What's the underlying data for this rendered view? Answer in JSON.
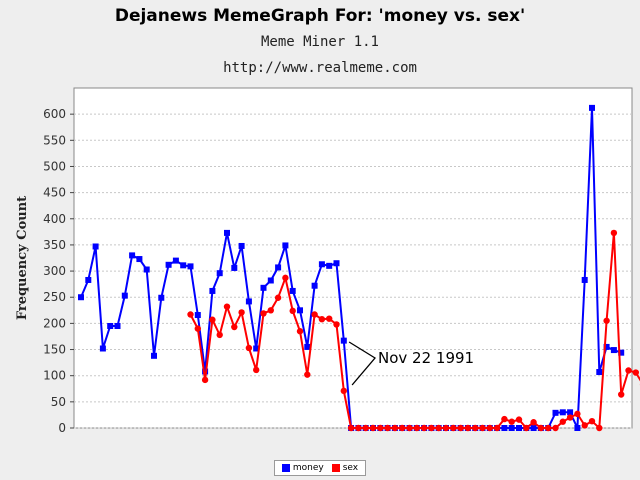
{
  "header": {
    "title": "Dejanews MemeGraph For: 'money vs. sex'",
    "subtitle": "Meme Miner 1.1",
    "url": "http://www.realmeme.com"
  },
  "chart_data": {
    "type": "line",
    "title": "Dejanews MemeGraph For: 'money vs. sex'",
    "xlabel": "",
    "ylabel": "Frequency Count",
    "ylim": [
      0,
      650
    ],
    "yticks": [
      0,
      50,
      100,
      150,
      200,
      250,
      300,
      350,
      400,
      450,
      500,
      550,
      600
    ],
    "grid": true,
    "legend_position": "bottom-center",
    "series": [
      {
        "name": "money",
        "color": "#0000ff",
        "values": [
          250,
          283,
          347,
          152,
          195,
          195,
          253,
          330,
          323,
          303,
          138,
          249,
          312,
          320,
          311,
          309,
          216,
          108,
          262,
          296,
          373,
          306,
          348,
          242,
          152,
          268,
          282,
          307,
          349,
          262,
          225,
          155,
          272,
          313,
          310,
          315,
          167,
          0,
          0,
          0,
          0,
          0,
          0,
          0,
          0,
          0,
          0,
          0,
          0,
          0,
          0,
          0,
          0,
          0,
          0,
          0,
          0,
          0,
          0,
          0,
          0,
          0,
          0,
          0,
          0,
          29,
          30,
          30,
          0,
          283,
          612,
          107,
          155,
          149,
          144
        ]
      },
      {
        "name": "sex",
        "color": "#ff0000",
        "start_index": 15,
        "values": [
          217,
          190,
          92,
          207,
          178,
          232,
          193,
          221,
          153,
          111,
          219,
          225,
          249,
          287,
          224,
          185,
          102,
          217,
          208,
          209,
          198,
          71,
          0,
          0,
          0,
          0,
          0,
          0,
          0,
          0,
          0,
          0,
          0,
          0,
          0,
          0,
          0,
          0,
          0,
          0,
          0,
          0,
          0,
          17,
          12,
          16,
          0,
          11,
          0,
          0,
          0,
          12,
          20,
          27,
          5,
          13,
          0,
          205,
          373,
          64,
          110,
          106,
          83,
          96,
          143
        ]
      }
    ],
    "annotations": [
      {
        "text": "Nov 22 1991",
        "x_index": 37,
        "y": 0
      }
    ]
  }
}
